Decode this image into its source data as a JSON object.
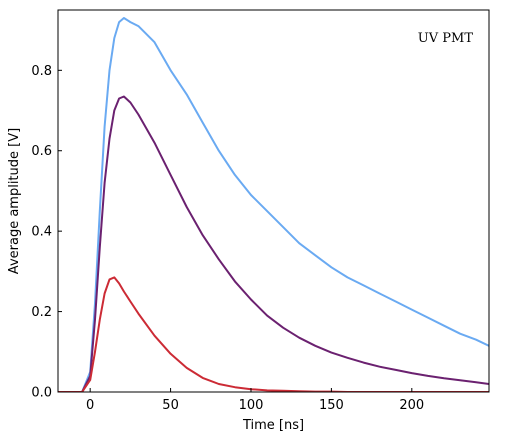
{
  "chart_data": {
    "type": "line",
    "title": "",
    "annotation": "UV PMT",
    "xlabel": "Time [ns]",
    "ylabel": "Average amplitude [V]",
    "xlim": [
      -20,
      248
    ],
    "ylim": [
      0,
      0.95
    ],
    "xticks": [
      0,
      50,
      100,
      150,
      200
    ],
    "yticks": [
      0.0,
      0.2,
      0.4,
      0.6,
      0.8
    ],
    "grid": false,
    "legend": "none",
    "series": [
      {
        "color": "#6aaaf2",
        "x": [
          -20,
          -5,
          0,
          3,
          6,
          9,
          12,
          15,
          18,
          21,
          25,
          30,
          40,
          50,
          60,
          70,
          80,
          90,
          100,
          110,
          120,
          130,
          140,
          150,
          160,
          170,
          180,
          190,
          200,
          210,
          220,
          230,
          240,
          248
        ],
        "y": [
          0.0,
          0.0,
          0.05,
          0.22,
          0.45,
          0.66,
          0.8,
          0.88,
          0.92,
          0.93,
          0.92,
          0.91,
          0.87,
          0.8,
          0.74,
          0.67,
          0.6,
          0.54,
          0.49,
          0.45,
          0.41,
          0.37,
          0.34,
          0.31,
          0.285,
          0.265,
          0.245,
          0.225,
          0.205,
          0.185,
          0.165,
          0.145,
          0.13,
          0.115
        ]
      },
      {
        "color": "#6b2170",
        "x": [
          -20,
          -5,
          0,
          3,
          6,
          9,
          12,
          15,
          18,
          21,
          25,
          30,
          40,
          50,
          60,
          70,
          80,
          90,
          100,
          110,
          120,
          130,
          140,
          150,
          160,
          170,
          180,
          190,
          200,
          210,
          220,
          230,
          240,
          248
        ],
        "y": [
          0.0,
          0.0,
          0.04,
          0.18,
          0.36,
          0.52,
          0.63,
          0.7,
          0.73,
          0.735,
          0.72,
          0.69,
          0.62,
          0.54,
          0.46,
          0.39,
          0.33,
          0.275,
          0.23,
          0.19,
          0.16,
          0.135,
          0.115,
          0.098,
          0.085,
          0.073,
          0.063,
          0.055,
          0.047,
          0.04,
          0.034,
          0.029,
          0.024,
          0.02
        ]
      },
      {
        "color": "#cc2b35",
        "x": [
          -20,
          -5,
          0,
          3,
          6,
          9,
          12,
          15,
          18,
          21,
          25,
          30,
          40,
          50,
          60,
          70,
          80,
          90,
          100,
          110,
          120,
          130,
          140,
          150,
          160,
          170,
          180,
          190,
          200,
          210,
          220,
          230,
          240,
          248
        ],
        "y": [
          0.0,
          0.0,
          0.03,
          0.1,
          0.18,
          0.245,
          0.28,
          0.285,
          0.27,
          0.25,
          0.225,
          0.195,
          0.14,
          0.095,
          0.06,
          0.035,
          0.02,
          0.012,
          0.007,
          0.004,
          0.003,
          0.002,
          0.001,
          0.001,
          0.0,
          0.0,
          0.0,
          0.0,
          0.0,
          0.0,
          0.0,
          0.0,
          0.0,
          0.0
        ]
      }
    ]
  }
}
